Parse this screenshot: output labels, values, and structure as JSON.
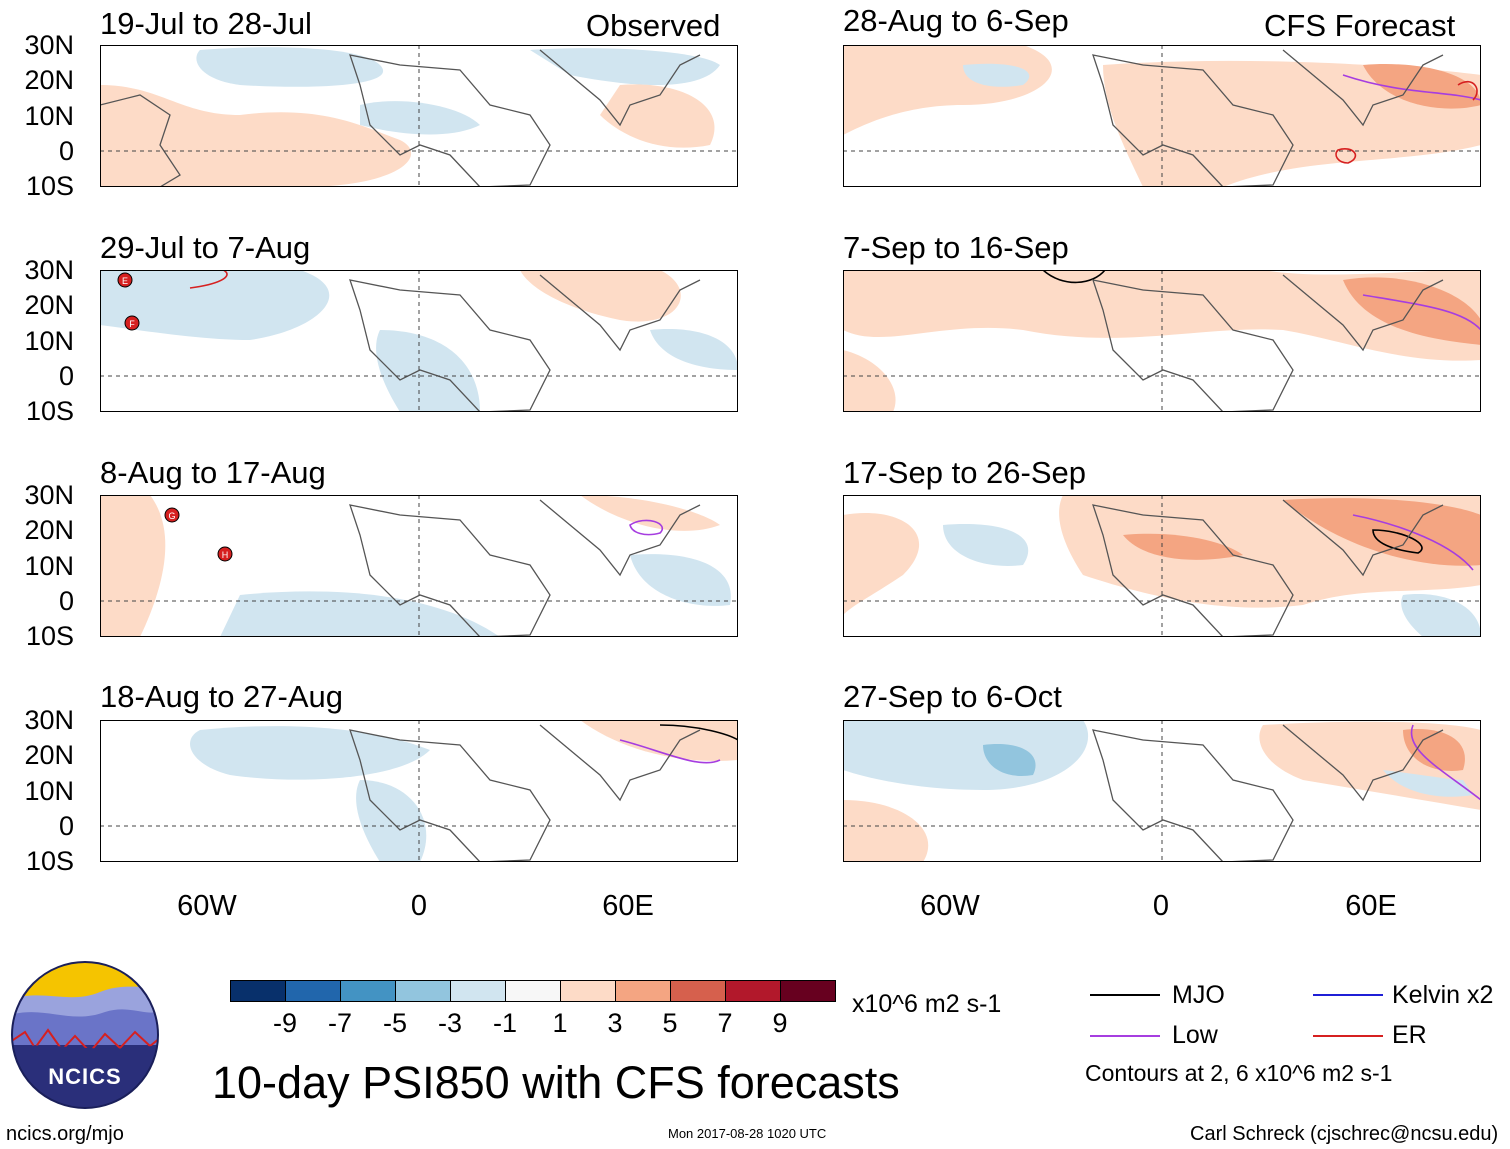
{
  "panels": [
    {
      "period": "19-Jul to 28-Jul",
      "tag": "Observed",
      "column": "left"
    },
    {
      "period": "29-Jul to 7-Aug",
      "tag": "",
      "column": "left"
    },
    {
      "period": "8-Aug to 17-Aug",
      "tag": "",
      "column": "left"
    },
    {
      "period": "18-Aug to 27-Aug",
      "tag": "",
      "column": "left"
    },
    {
      "period": "28-Aug to 6-Sep",
      "tag": "CFS Forecast",
      "column": "right"
    },
    {
      "period": "7-Sep to 16-Sep",
      "tag": "",
      "column": "right"
    },
    {
      "period": "17-Sep to 26-Sep",
      "tag": "",
      "column": "right"
    },
    {
      "period": "27-Sep to 6-Oct",
      "tag": "",
      "column": "right"
    }
  ],
  "lat_labels": [
    "30N",
    "20N",
    "10N",
    "0",
    "10S"
  ],
  "lon_labels": [
    "60W",
    "0",
    "60E"
  ],
  "storm_markers": {
    "p1a": "E",
    "p1b": "F",
    "p2a": "G",
    "p2b": "H"
  },
  "colorbar": {
    "colors": [
      "#08306b",
      "#2166ac",
      "#4393c3",
      "#92c5de",
      "#d1e5f0",
      "#f7f7f7",
      "#fddbc7",
      "#f4a582",
      "#d6604d",
      "#b2182b",
      "#67001f"
    ],
    "ticks": [
      "-9",
      "-7",
      "-5",
      "-3",
      "-1",
      "1",
      "3",
      "5",
      "7",
      "9"
    ],
    "units": "x10^6 m2 s-1"
  },
  "legend": {
    "mjo": "MJO",
    "kelvin": "Kelvin x2",
    "low": "Low",
    "er": "ER",
    "mjo_color": "#000000",
    "kelvin_color": "#1f1fd6",
    "low_color": "#a63de0",
    "er_color": "#d62020",
    "contours_note": "Contours at 2, 6 x10^6 m2 s-1"
  },
  "title": "10-day PSI850 with CFS forecasts",
  "logo": {
    "text": "NCICS"
  },
  "footer": {
    "url": "ncics.org/mjo",
    "timestamp": "Mon 2017-08-28 1020 UTC",
    "credit": "Carl Schreck (cjschrec@ncsu.edu)"
  }
}
